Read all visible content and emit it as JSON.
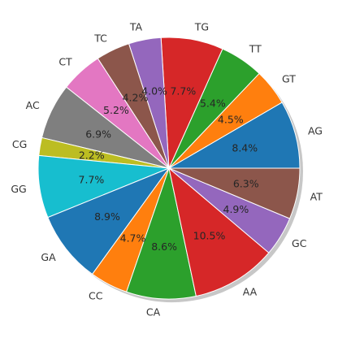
{
  "chart_data": {
    "type": "pie",
    "start_angle_deg": 0,
    "direction": "counterclockwise",
    "shadow": true,
    "slices": [
      {
        "label": "AG",
        "percent": 8.4,
        "pct_text": "8.4%",
        "color": "#1f77b4"
      },
      {
        "label": "GT",
        "percent": 4.5,
        "pct_text": "4.5%",
        "color": "#ff7f0e"
      },
      {
        "label": "TT",
        "percent": 5.4,
        "pct_text": "5.4%",
        "color": "#2ca02c"
      },
      {
        "label": "TG",
        "percent": 7.7,
        "pct_text": "7.7%",
        "color": "#d62728"
      },
      {
        "label": "TA",
        "percent": 4.0,
        "pct_text": "4.0%",
        "color": "#9467bd"
      },
      {
        "label": "TC",
        "percent": 4.2,
        "pct_text": "4.2%",
        "color": "#8c564b"
      },
      {
        "label": "CT",
        "percent": 5.2,
        "pct_text": "5.2%",
        "color": "#e377c2"
      },
      {
        "label": "AC",
        "percent": 6.9,
        "pct_text": "6.9%",
        "color": "#7f7f7f"
      },
      {
        "label": "CG",
        "percent": 2.2,
        "pct_text": "2.2%",
        "color": "#bcbd22"
      },
      {
        "label": "GG",
        "percent": 7.7,
        "pct_text": "7.7%",
        "color": "#17becf"
      },
      {
        "label": "GA",
        "percent": 8.9,
        "pct_text": "8.9%",
        "color": "#1f77b4"
      },
      {
        "label": "CC",
        "percent": 4.7,
        "pct_text": "4.7%",
        "color": "#ff7f0e"
      },
      {
        "label": "CA",
        "percent": 8.6,
        "pct_text": "8.6%",
        "color": "#2ca02c"
      },
      {
        "label": "AA",
        "percent": 10.5,
        "pct_text": "10.5%",
        "color": "#d62728"
      },
      {
        "label": "GC",
        "percent": 4.9,
        "pct_text": "4.9%",
        "color": "#9467bd"
      },
      {
        "label": "AT",
        "percent": 6.3,
        "pct_text": "6.3%",
        "color": "#8c564b"
      }
    ]
  }
}
